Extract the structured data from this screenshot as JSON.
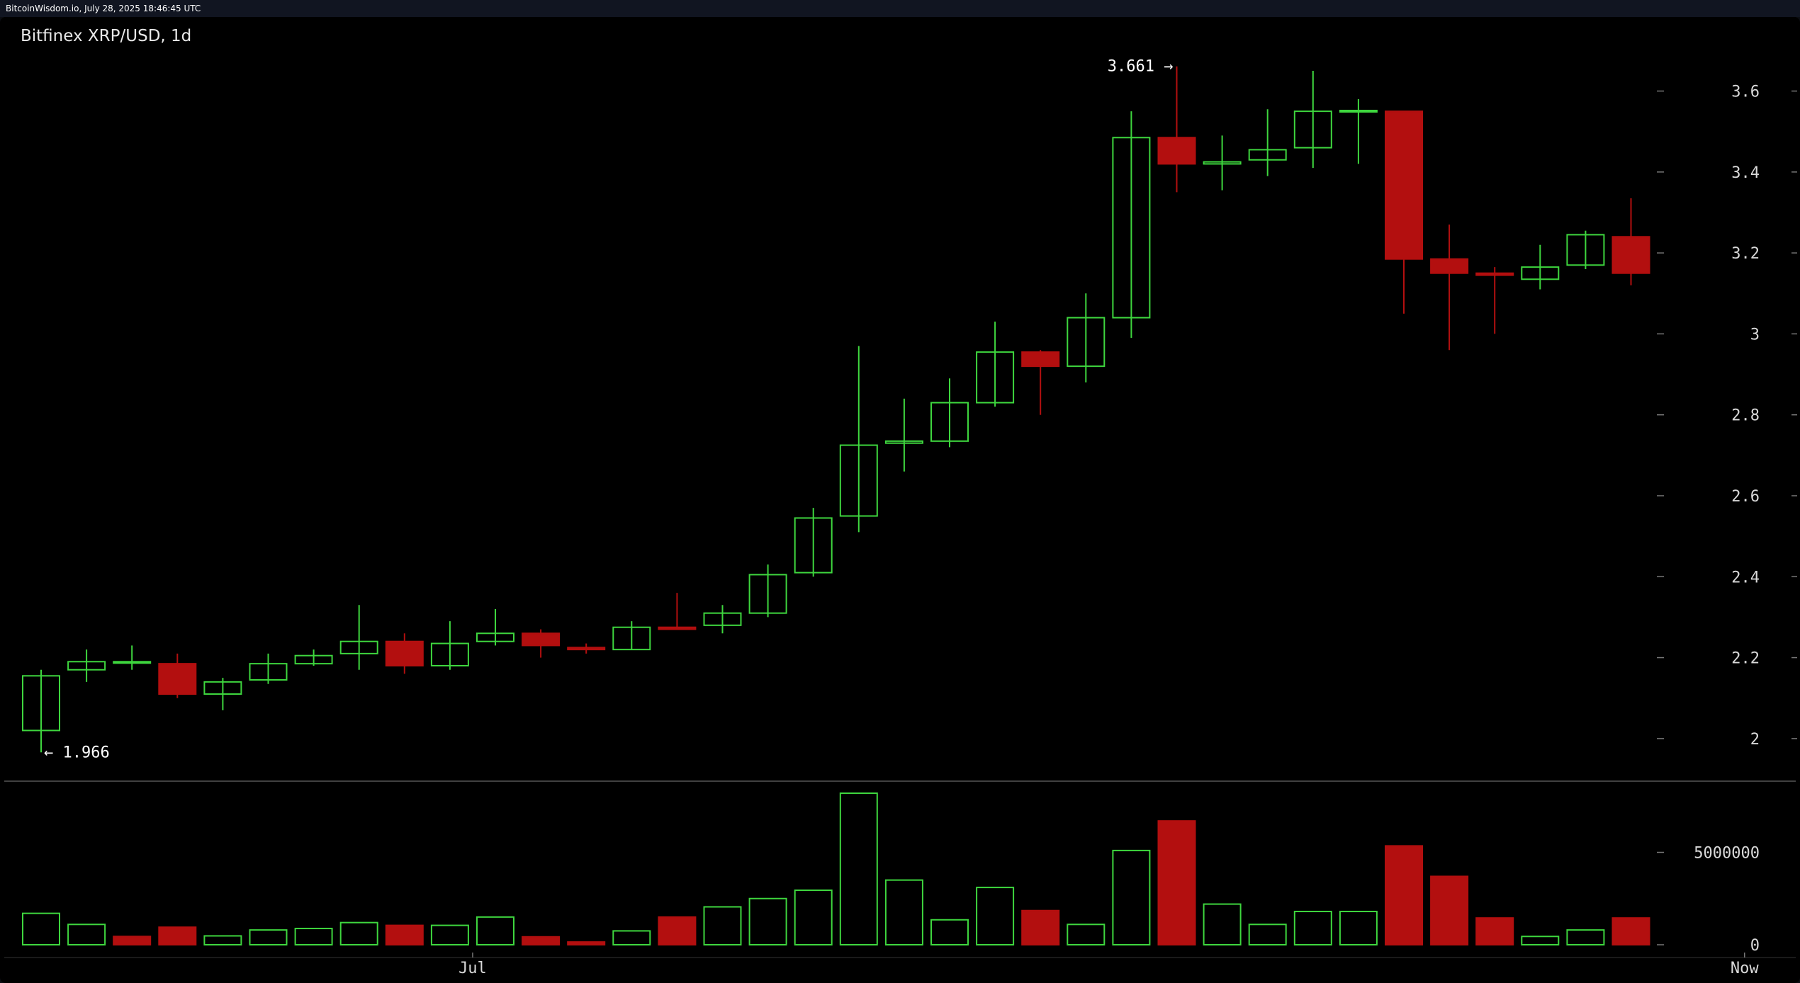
{
  "header": {
    "caption": "BitcoinWisdom.io, July 28, 2025 18:46:45 UTC",
    "chart_title": "Bitfinex XRP/USD, 1d"
  },
  "colors": {
    "up": "#3ed63e",
    "down": "#b30f0f",
    "axis_text": "#d9d9d9",
    "background": "#000000"
  },
  "chart_data": [
    {
      "type": "candlestick",
      "title": "Bitfinex XRP/USD, 1d",
      "ylim": [
        1.9,
        3.72
      ],
      "y_ticks": [
        2,
        2.2,
        2.4,
        2.6,
        2.8,
        3,
        3.2,
        3.4,
        3.6
      ],
      "y_tick_labels": [
        "2",
        "2.2",
        "2.4",
        "2.6",
        "2.8",
        "3",
        "3.2",
        "3.4",
        "3.6"
      ],
      "x_labels": [
        {
          "label": "Jul",
          "index": 9.5
        },
        {
          "label": "Now",
          "index": 37.5
        }
      ],
      "annotations": [
        {
          "text": "3.661 →",
          "index": 25,
          "value": 3.661
        },
        {
          "text": "← 1.966",
          "index": 0,
          "value": 1.966
        }
      ],
      "candles": [
        {
          "o": 2.02,
          "h": 2.17,
          "l": 1.966,
          "c": 2.155
        },
        {
          "o": 2.17,
          "h": 2.22,
          "l": 2.14,
          "c": 2.19
        },
        {
          "o": 2.19,
          "h": 2.23,
          "l": 2.17,
          "c": 2.19
        },
        {
          "o": 2.185,
          "h": 2.21,
          "l": 2.1,
          "c": 2.11
        },
        {
          "o": 2.11,
          "h": 2.15,
          "l": 2.07,
          "c": 2.14
        },
        {
          "o": 2.145,
          "h": 2.21,
          "l": 2.135,
          "c": 2.185
        },
        {
          "o": 2.185,
          "h": 2.22,
          "l": 2.18,
          "c": 2.205
        },
        {
          "o": 2.21,
          "h": 2.33,
          "l": 2.17,
          "c": 2.24
        },
        {
          "o": 2.24,
          "h": 2.26,
          "l": 2.16,
          "c": 2.18
        },
        {
          "o": 2.18,
          "h": 2.29,
          "l": 2.17,
          "c": 2.235
        },
        {
          "o": 2.24,
          "h": 2.32,
          "l": 2.23,
          "c": 2.26
        },
        {
          "o": 2.26,
          "h": 2.27,
          "l": 2.2,
          "c": 2.23
        },
        {
          "o": 2.225,
          "h": 2.235,
          "l": 2.21,
          "c": 2.22
        },
        {
          "o": 2.22,
          "h": 2.29,
          "l": 2.22,
          "c": 2.275
        },
        {
          "o": 2.275,
          "h": 2.36,
          "l": 2.27,
          "c": 2.27
        },
        {
          "o": 2.28,
          "h": 2.33,
          "l": 2.26,
          "c": 2.31
        },
        {
          "o": 2.31,
          "h": 2.43,
          "l": 2.3,
          "c": 2.405
        },
        {
          "o": 2.41,
          "h": 2.57,
          "l": 2.4,
          "c": 2.545
        },
        {
          "o": 2.55,
          "h": 2.97,
          "l": 2.51,
          "c": 2.725
        },
        {
          "o": 2.73,
          "h": 2.84,
          "l": 2.66,
          "c": 2.735
        },
        {
          "o": 2.735,
          "h": 2.89,
          "l": 2.72,
          "c": 2.83
        },
        {
          "o": 2.83,
          "h": 3.03,
          "l": 2.82,
          "c": 2.955
        },
        {
          "o": 2.955,
          "h": 2.96,
          "l": 2.8,
          "c": 2.92
        },
        {
          "o": 2.92,
          "h": 3.1,
          "l": 2.88,
          "c": 3.04
        },
        {
          "o": 3.04,
          "h": 3.55,
          "l": 2.99,
          "c": 3.485
        },
        {
          "o": 3.485,
          "h": 3.661,
          "l": 3.35,
          "c": 3.42
        },
        {
          "o": 3.42,
          "h": 3.49,
          "l": 3.355,
          "c": 3.425
        },
        {
          "o": 3.43,
          "h": 3.555,
          "l": 3.39,
          "c": 3.455
        },
        {
          "o": 3.46,
          "h": 3.65,
          "l": 3.41,
          "c": 3.55
        },
        {
          "o": 3.55,
          "h": 3.58,
          "l": 3.42,
          "c": 3.552
        },
        {
          "o": 3.55,
          "h": 3.55,
          "l": 3.05,
          "c": 3.185
        },
        {
          "o": 3.185,
          "h": 3.27,
          "l": 2.96,
          "c": 3.15
        },
        {
          "o": 3.15,
          "h": 3.165,
          "l": 3.0,
          "c": 3.145
        },
        {
          "o": 3.135,
          "h": 3.22,
          "l": 3.11,
          "c": 3.165
        },
        {
          "o": 3.17,
          "h": 3.255,
          "l": 3.16,
          "c": 3.245
        },
        {
          "o": 3.24,
          "h": 3.335,
          "l": 3.12,
          "c": 3.15
        }
      ]
    },
    {
      "type": "bar",
      "title": "",
      "ylim": [
        0,
        8200000
      ],
      "y_ticks": [
        0,
        5000000
      ],
      "y_tick_labels": [
        "0",
        "5000000"
      ],
      "values": [
        1700000,
        1100000,
        450000,
        950000,
        480000,
        800000,
        880000,
        1200000,
        1050000,
        1050000,
        1500000,
        430000,
        150000,
        750000,
        1500000,
        2050000,
        2500000,
        2950000,
        8200000,
        3500000,
        1350000,
        3100000,
        1850000,
        1100000,
        5100000,
        6700000,
        2200000,
        1100000,
        1800000,
        1800000,
        5350000,
        3700000,
        1450000,
        450000,
        800000,
        1450000
      ],
      "up": [
        true,
        true,
        false,
        false,
        true,
        true,
        true,
        true,
        false,
        true,
        true,
        false,
        false,
        true,
        false,
        true,
        true,
        true,
        true,
        true,
        true,
        true,
        false,
        true,
        true,
        false,
        true,
        true,
        true,
        true,
        false,
        false,
        false,
        true,
        true,
        false
      ]
    }
  ]
}
